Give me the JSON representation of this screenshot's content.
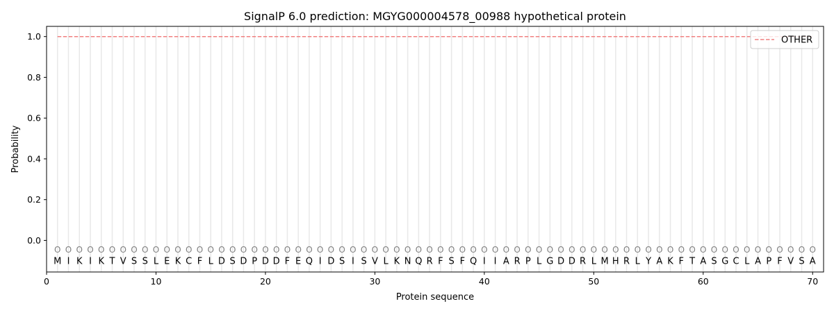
{
  "chart_data": {
    "type": "line",
    "title": "SignalP 6.0 prediction: MGYG000004578_00988 hypothetical protein",
    "xlabel": "Protein sequence",
    "ylabel": "Probability",
    "xlim": [
      0,
      71
    ],
    "ylim": [
      -0.155,
      1.05
    ],
    "xticks": [
      0,
      10,
      20,
      30,
      40,
      50,
      60,
      70
    ],
    "yticks": [
      0.0,
      0.2,
      0.4,
      0.6,
      0.8,
      1.0
    ],
    "ytick_labels": [
      "0.0",
      "0.2",
      "0.4",
      "0.6",
      "0.8",
      "1.0"
    ],
    "grid": "vertical lines at each residue",
    "legend_position": "top-right",
    "sequence": [
      "M",
      "I",
      "K",
      "I",
      "K",
      "T",
      "V",
      "S",
      "S",
      "L",
      "E",
      "K",
      "C",
      "F",
      "L",
      "D",
      "S",
      "D",
      "P",
      "D",
      "D",
      "F",
      "E",
      "Q",
      "I",
      "D",
      "S",
      "I",
      "S",
      "V",
      "L",
      "K",
      "N",
      "Q",
      "R",
      "F",
      "S",
      "F",
      "Q",
      "I",
      "I",
      "A",
      "R",
      "P",
      "L",
      "G",
      "D",
      "D",
      "R",
      "L",
      "M",
      "H",
      "R",
      "L",
      "Y",
      "A",
      "K",
      "F",
      "T",
      "A",
      "S",
      "G",
      "C",
      "L",
      "A",
      "P",
      "F",
      "V",
      "S",
      "A"
    ],
    "region_label": "O",
    "series": [
      {
        "name": "OTHER",
        "color": "#f08080",
        "style": "dashed",
        "x_start": 1,
        "x_end": 70,
        "value": 1.0
      }
    ]
  }
}
